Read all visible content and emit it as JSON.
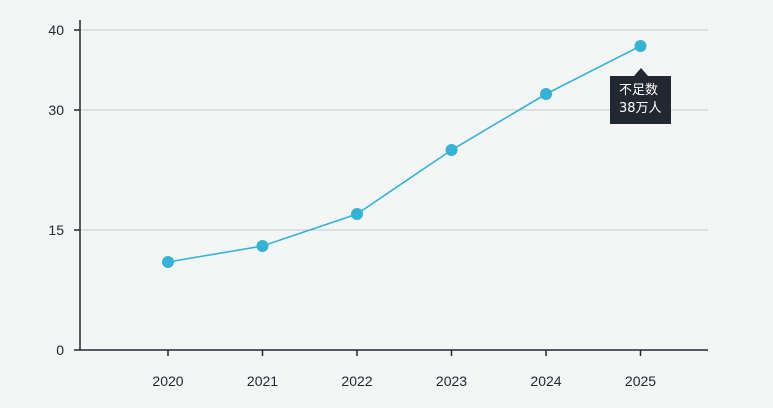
{
  "chart_data": {
    "type": "line",
    "categories": [
      "2020",
      "2021",
      "2022",
      "2023",
      "2024",
      "2025"
    ],
    "series": [
      {
        "values": [
          11,
          13,
          17,
          25,
          32,
          38
        ]
      }
    ],
    "y_ticks": [
      0,
      15,
      30,
      40
    ],
    "ylim": [
      0,
      40
    ],
    "grid": true,
    "annotation": {
      "category": "2025",
      "line1": "不足数",
      "line2": "38万人"
    }
  },
  "colors": {
    "series": "#33b3d6",
    "axis": "#222831",
    "grid": "#c5cacb",
    "callout_bg": "#222831",
    "background": "#f4f6f5"
  }
}
